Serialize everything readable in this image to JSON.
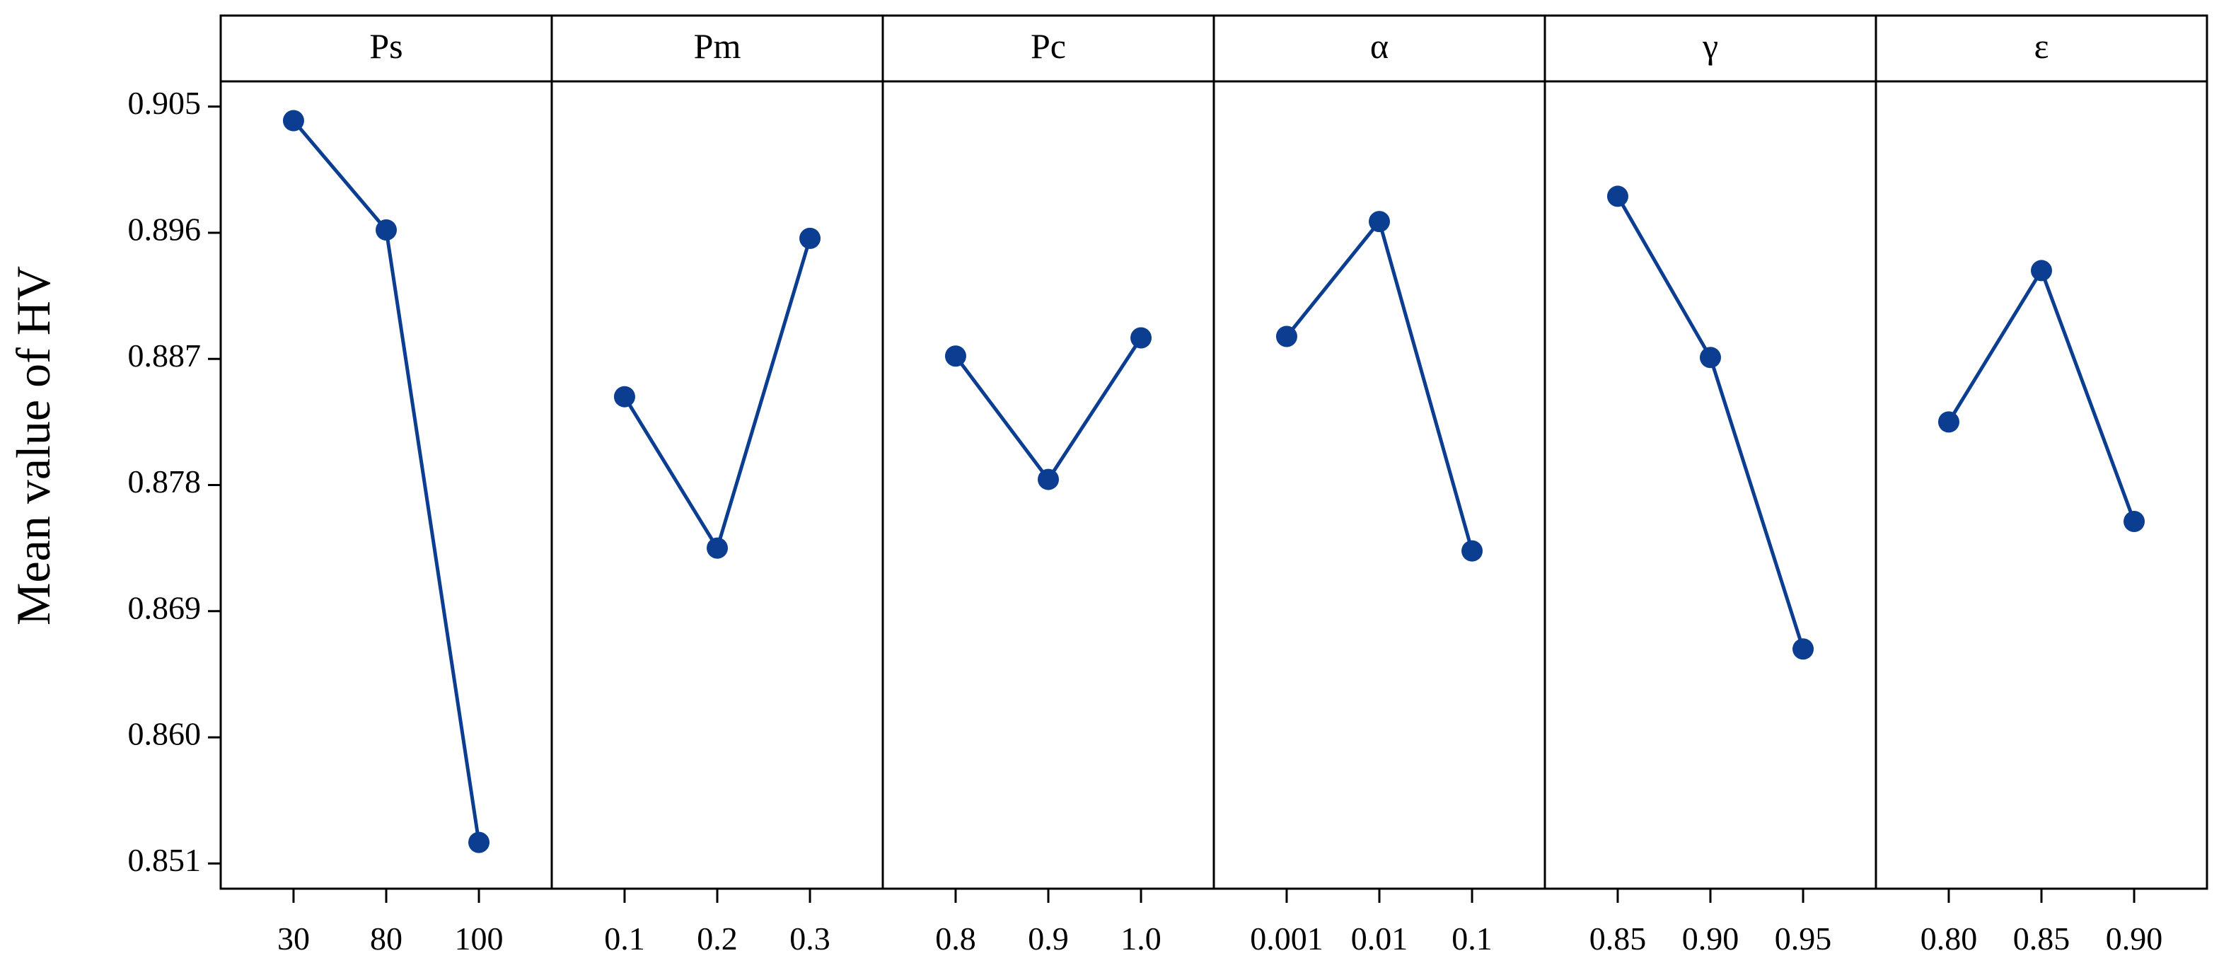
{
  "chart_data": {
    "type": "line",
    "title": "",
    "ylabel": "Mean value of HV",
    "xlabel": "",
    "ylim": [
      0.8492,
      0.9068
    ],
    "yticks": [
      0.851,
      0.86,
      0.869,
      0.878,
      0.887,
      0.896,
      0.905
    ],
    "ytick_labels": [
      "0.851",
      "0.860",
      "0.869",
      "0.878",
      "0.887",
      "0.896",
      "0.905"
    ],
    "grid": false,
    "legend": "none",
    "colors": {
      "line": "#0b3d91",
      "marker": "#0b3d91"
    },
    "panels": [
      {
        "title": "Ps",
        "categories": [
          "30",
          "80",
          "100"
        ],
        "values": [
          0.904,
          0.8962,
          0.8525
        ]
      },
      {
        "title": "Pm",
        "categories": [
          "0.1",
          "0.2",
          "0.3"
        ],
        "values": [
          0.8843,
          0.8735,
          0.8956
        ]
      },
      {
        "title": "Pc",
        "categories": [
          "0.8",
          "0.9",
          "1.0"
        ],
        "values": [
          0.8872,
          0.8784,
          0.8885
        ]
      },
      {
        "title": "α",
        "categories": [
          "0.001",
          "0.01",
          "0.1"
        ],
        "values": [
          0.8886,
          0.8968,
          0.8733
        ]
      },
      {
        "title": "γ",
        "categories": [
          "0.85",
          "0.90",
          "0.95"
        ],
        "values": [
          0.8986,
          0.8871,
          0.8663
        ]
      },
      {
        "title": "ε",
        "categories": [
          "0.80",
          "0.85",
          "0.90"
        ],
        "values": [
          0.8825,
          0.8933,
          0.8754
        ]
      }
    ]
  }
}
